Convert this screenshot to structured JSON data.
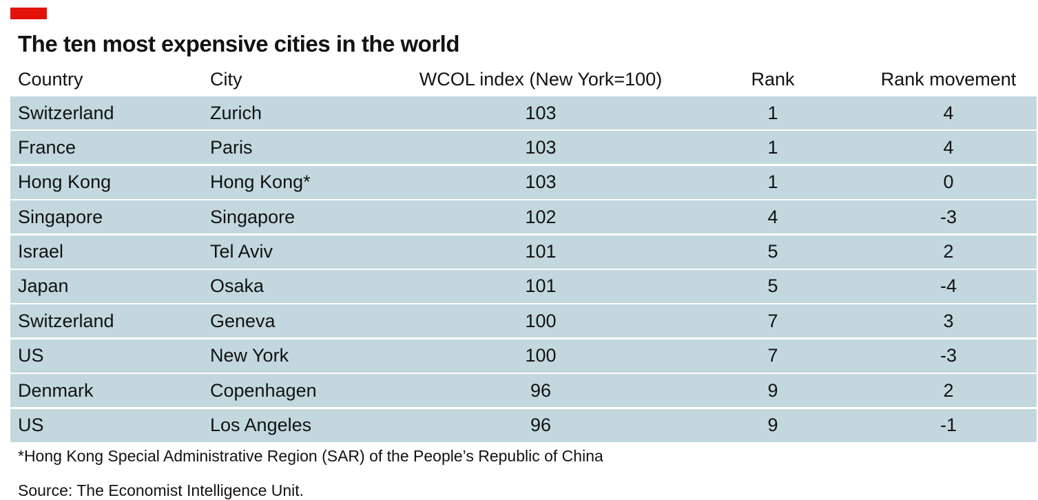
{
  "title": "The ten most expensive cities in the world",
  "footnote": "*Hong Kong Special Administrative Region (SAR) of the People’s Republic of China",
  "source": "Source: The Economist Intelligence Unit.",
  "colors": {
    "accent": "#e3120b",
    "row_background": "#c2d8de"
  },
  "chart_data": {
    "type": "table",
    "title": "The ten most expensive cities in the world",
    "columns": [
      "Country",
      "City",
      "WCOL index (New York=100)",
      "Rank",
      "Rank movement"
    ],
    "rows": [
      {
        "country": "Switzerland",
        "city": "Zurich",
        "index": "103",
        "rank": "1",
        "movement": "4"
      },
      {
        "country": "France",
        "city": "Paris",
        "index": "103",
        "rank": "1",
        "movement": "4"
      },
      {
        "country": "Hong Kong",
        "city": "Hong Kong*",
        "index": "103",
        "rank": "1",
        "movement": "0"
      },
      {
        "country": "Singapore",
        "city": "Singapore",
        "index": "102",
        "rank": "4",
        "movement": "-3"
      },
      {
        "country": "Israel",
        "city": "Tel Aviv",
        "index": "101",
        "rank": "5",
        "movement": "2"
      },
      {
        "country": "Japan",
        "city": "Osaka",
        "index": "101",
        "rank": "5",
        "movement": "-4"
      },
      {
        "country": "Switzerland",
        "city": "Geneva",
        "index": "100",
        "rank": "7",
        "movement": "3"
      },
      {
        "country": "US",
        "city": "New York",
        "index": "100",
        "rank": "7",
        "movement": "-3"
      },
      {
        "country": "Denmark",
        "city": "Copenhagen",
        "index": "96",
        "rank": "9",
        "movement": "2"
      },
      {
        "country": "US",
        "city": "Los Angeles",
        "index": "96",
        "rank": "9",
        "movement": "-1"
      }
    ]
  }
}
